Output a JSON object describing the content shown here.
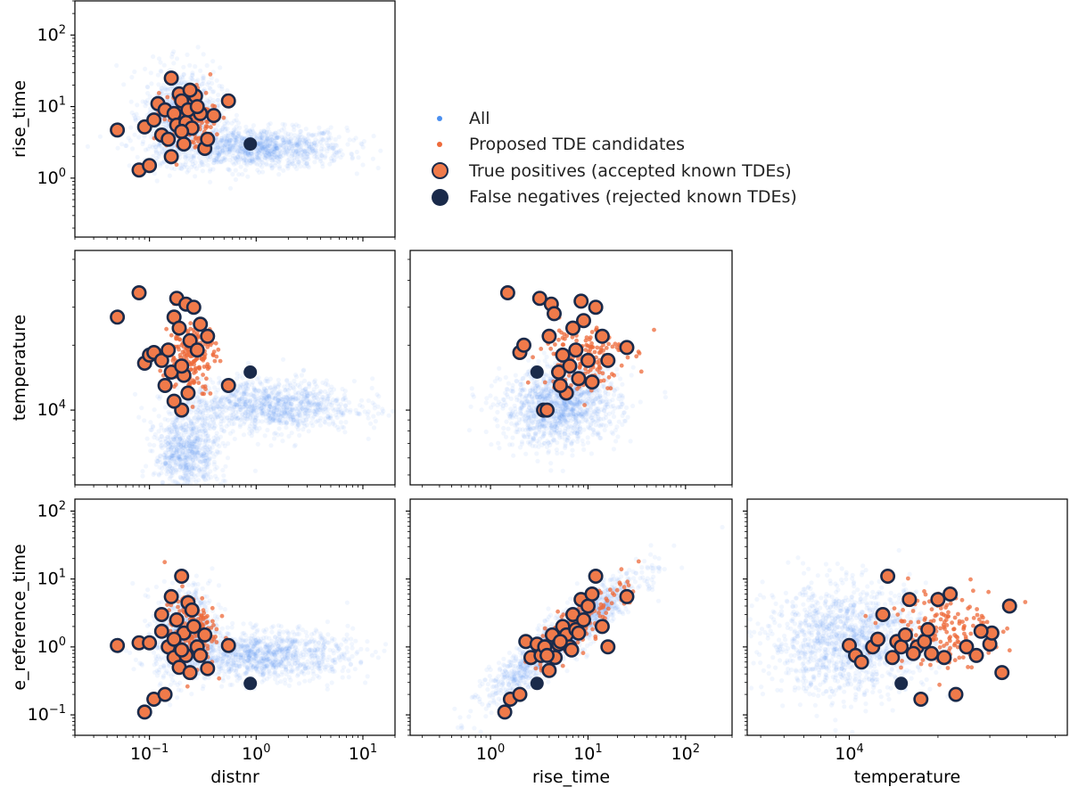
{
  "figure": {
    "colors": {
      "all": "#4a8ff0",
      "candidates": "#ee6a3a",
      "true_positive_fill": "#f07a4a",
      "marker_edge": "#1a2a4a",
      "false_negative": "#1a2a4a"
    }
  },
  "legend": {
    "all": "All",
    "candidates": "Proposed TDE candidates",
    "true_positives": "True positives (accepted known TDEs)",
    "false_negatives": "False negatives (rejected known TDEs)"
  },
  "chart_data": [
    {
      "type": "scatter",
      "panel": "rise_time vs distnr",
      "xlabel": "",
      "ylabel": "rise_time",
      "x_scale": "log",
      "y_scale": "log",
      "xlim": [
        0.02,
        20
      ],
      "ylim": [
        0.15,
        300
      ],
      "y_ticks": [
        "10^0",
        "10^1",
        "10^2"
      ],
      "series": [
        {
          "name": "True positives (accepted known TDEs)",
          "x": [
            0.05,
            0.08,
            0.09,
            0.1,
            0.11,
            0.12,
            0.13,
            0.14,
            0.15,
            0.16,
            0.17,
            0.18,
            0.19,
            0.2,
            0.21,
            0.22,
            0.23,
            0.25,
            0.27,
            0.3,
            0.33,
            0.35,
            0.4,
            0.55,
            0.16,
            0.2,
            0.24,
            0.28
          ],
          "y": [
            4.7,
            1.3,
            5.2,
            1.5,
            6.5,
            11,
            4,
            9,
            3.5,
            25,
            8,
            5.5,
            15,
            12,
            3,
            6,
            9,
            5,
            14,
            8,
            2.6,
            3.5,
            7.5,
            12,
            2,
            4.5,
            17,
            10
          ]
        },
        {
          "name": "False negatives (rejected known TDEs)",
          "x": [
            0.88
          ],
          "y": [
            3.0
          ]
        }
      ]
    },
    {
      "type": "scatter",
      "panel": "temperature vs distnr",
      "xlabel": "",
      "ylabel": "temperature",
      "x_scale": "log",
      "y_scale": "log",
      "xlim": [
        0.02,
        20
      ],
      "ylim": [
        4500,
        55000
      ],
      "y_ticks": [
        "10^4"
      ],
      "series": [
        {
          "name": "True positives (accepted known TDEs)",
          "x": [
            0.05,
            0.08,
            0.09,
            0.1,
            0.11,
            0.13,
            0.15,
            0.16,
            0.17,
            0.18,
            0.19,
            0.2,
            0.21,
            0.22,
            0.24,
            0.26,
            0.28,
            0.3,
            0.35,
            0.55,
            0.14,
            0.17,
            0.2,
            0.23
          ],
          "y": [
            27000,
            35000,
            16500,
            18000,
            18500,
            17000,
            19000,
            15000,
            27000,
            33000,
            24000,
            10000,
            14500,
            31000,
            21000,
            30000,
            19000,
            25000,
            22000,
            13000,
            13000,
            11000,
            16000,
            12000
          ]
        },
        {
          "name": "False negatives (rejected known TDEs)",
          "x": [
            0.88
          ],
          "y": [
            15000
          ]
        }
      ]
    },
    {
      "type": "scatter",
      "panel": "temperature vs rise_time",
      "xlabel": "",
      "ylabel": "",
      "x_scale": "log",
      "y_scale": "log",
      "xlim": [
        0.15,
        300
      ],
      "ylim": [
        4500,
        55000
      ],
      "series": [
        {
          "name": "True positives (accepted known TDEs)",
          "x": [
            1.5,
            2.0,
            2.2,
            3.2,
            3.5,
            4.0,
            4.2,
            4.5,
            5.0,
            5.5,
            6.0,
            6.5,
            7.0,
            7.5,
            8.0,
            8.5,
            9.0,
            10,
            11,
            12,
            14,
            16,
            25,
            3.8,
            5.2
          ],
          "y": [
            35000,
            18500,
            20000,
            33000,
            10000,
            22000,
            31000,
            28000,
            15000,
            18000,
            12000,
            16000,
            24000,
            19000,
            14000,
            32000,
            26000,
            17000,
            13500,
            30000,
            22000,
            17000,
            19500,
            10000,
            13000
          ]
        },
        {
          "name": "False negatives (rejected known TDEs)",
          "x": [
            3.0
          ],
          "y": [
            15000
          ]
        }
      ]
    },
    {
      "type": "scatter",
      "panel": "e_reference_time vs distnr",
      "xlabel": "distnr",
      "ylabel": "e_reference_time",
      "x_scale": "log",
      "y_scale": "log",
      "xlim": [
        0.02,
        20
      ],
      "ylim": [
        0.05,
        150
      ],
      "x_ticks": [
        "10^-1",
        "10^0",
        "10^1"
      ],
      "y_ticks": [
        "10^-1",
        "10^0",
        "10^1",
        "10^2"
      ],
      "series": [
        {
          "name": "True positives (accepted known TDEs)",
          "x": [
            0.05,
            0.08,
            0.09,
            0.1,
            0.11,
            0.13,
            0.14,
            0.15,
            0.16,
            0.17,
            0.18,
            0.19,
            0.2,
            0.21,
            0.22,
            0.23,
            0.24,
            0.26,
            0.28,
            0.3,
            0.33,
            0.35,
            0.55,
            0.13,
            0.17,
            0.2,
            0.25
          ],
          "y": [
            1.05,
            1.15,
            0.11,
            1.15,
            0.17,
            3.0,
            0.2,
            1.0,
            5.5,
            0.7,
            2.5,
            0.5,
            11,
            1.6,
            0.75,
            4.5,
            0.42,
            2.0,
            1.0,
            0.75,
            1.5,
            0.48,
            1.05,
            1.7,
            1.3,
            0.9,
            3.5
          ]
        },
        {
          "name": "False negatives (rejected known TDEs)",
          "x": [
            0.88
          ],
          "y": [
            0.29
          ]
        }
      ]
    },
    {
      "type": "scatter",
      "panel": "e_reference_time vs rise_time",
      "xlabel": "rise_time",
      "ylabel": "",
      "x_scale": "log",
      "y_scale": "log",
      "xlim": [
        0.15,
        300
      ],
      "ylim": [
        0.05,
        150
      ],
      "x_ticks": [
        "10^0",
        "10^1",
        "10^2"
      ],
      "series": [
        {
          "name": "True positives (accepted known TDEs)",
          "x": [
            1.4,
            1.6,
            2.0,
            2.3,
            2.6,
            3.0,
            3.3,
            3.6,
            4.0,
            4.3,
            4.6,
            5.0,
            5.5,
            6.0,
            6.5,
            7.0,
            7.5,
            8.0,
            8.5,
            9.0,
            10,
            11,
            12,
            14,
            16,
            25,
            3.8,
            5.2,
            6.8
          ],
          "y": [
            0.11,
            0.17,
            0.2,
            1.2,
            0.7,
            1.1,
            0.75,
            1.0,
            0.45,
            1.5,
            0.7,
            1.1,
            2.0,
            1.5,
            1.0,
            3.0,
            1.8,
            1.6,
            5.0,
            2.5,
            4.0,
            6.0,
            11,
            2.0,
            1.0,
            5.5,
            0.75,
            1.2,
            0.9
          ]
        },
        {
          "name": "False negatives (rejected known TDEs)",
          "x": [
            3.0
          ],
          "y": [
            0.29
          ]
        }
      ]
    },
    {
      "type": "scatter",
      "panel": "e_reference_time vs temperature",
      "xlabel": "temperature",
      "ylabel": "",
      "x_scale": "log",
      "y_scale": "log",
      "xlim": [
        4500,
        55000
      ],
      "ylim": [
        0.05,
        150
      ],
      "x_ticks": [
        "10^4"
      ],
      "series": [
        {
          "name": "True positives (accepted known TDEs)",
          "x": [
            10000,
            10500,
            11000,
            12000,
            12500,
            13000,
            13500,
            14000,
            14500,
            15000,
            15500,
            16000,
            17000,
            17500,
            18000,
            18500,
            19000,
            20000,
            21000,
            22000,
            23000,
            25000,
            27000,
            30000,
            33000,
            35000,
            30500,
            16500,
            12500,
            28000
          ],
          "y": [
            1.05,
            0.75,
            0.6,
            1.0,
            1.3,
            3.0,
            11,
            0.7,
            1.2,
            1.0,
            1.5,
            5.0,
            1.0,
            0.17,
            1.2,
            1.8,
            0.8,
            5.0,
            0.7,
            6.0,
            0.2,
            1.0,
            0.75,
            1.1,
            0.42,
            4.0,
            1.6,
            0.8,
            1.3,
            1.7
          ]
        },
        {
          "name": "False negatives (rejected known TDEs)",
          "x": [
            15000
          ],
          "y": [
            0.29
          ]
        }
      ]
    }
  ]
}
